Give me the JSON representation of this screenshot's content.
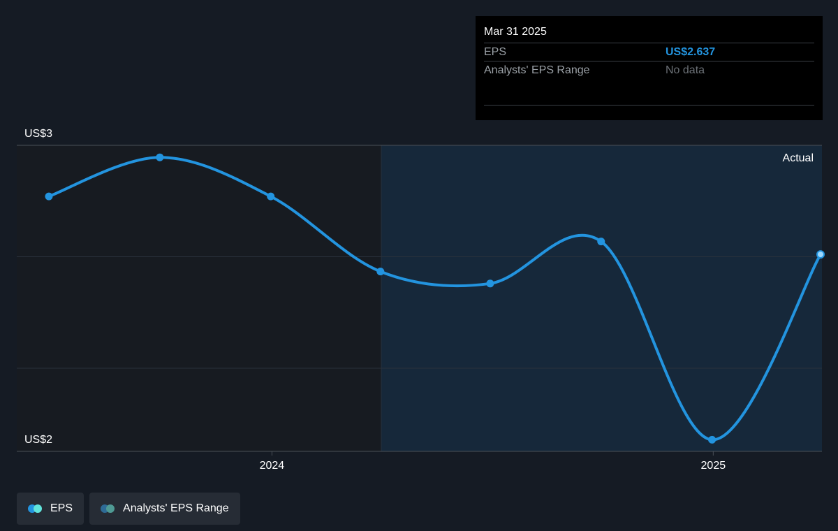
{
  "tooltip": {
    "date": "Mar 31 2025",
    "rows": [
      {
        "label": "EPS",
        "value": "US$2.637"
      },
      {
        "label": "Analysts' EPS Range",
        "value": "No data"
      }
    ]
  },
  "legend": [
    {
      "label": "EPS",
      "colors": [
        "#2394df",
        "#61e5dc"
      ]
    },
    {
      "label": "Analysts' EPS Range",
      "colors": [
        "#2e6b96",
        "#4f9a94"
      ]
    }
  ],
  "chart_data": {
    "type": "line",
    "series": [
      {
        "name": "EPS",
        "x": [
          "2023-06-30",
          "2023-09-30",
          "2023-12-31",
          "2024-03-31",
          "2024-06-30",
          "2024-09-30",
          "2024-12-31",
          "2025-03-31"
        ],
        "values": [
          2.83,
          2.96,
          2.83,
          2.58,
          2.54,
          2.68,
          2.02,
          2.637
        ]
      }
    ],
    "y_tick_labels": [
      "US$3",
      "US$2"
    ],
    "ylim": [
      2,
      3
    ],
    "x_tick_labels": [
      "2024",
      "2025"
    ],
    "region_label": "Actual",
    "grid": true,
    "colors": {
      "line": "#2394df",
      "last_point": "#9dd9ff",
      "actual_region": "#16283a"
    }
  }
}
